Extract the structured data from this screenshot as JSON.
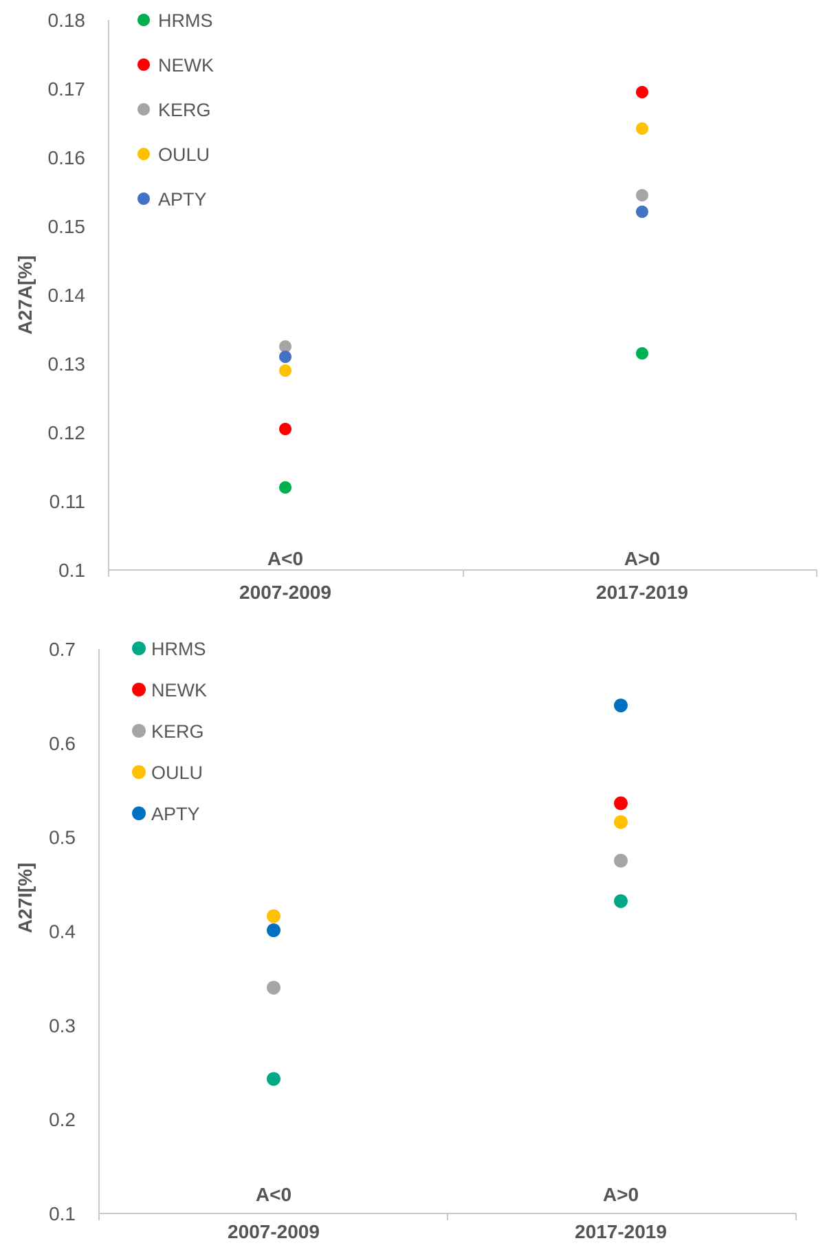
{
  "chart_data": [
    {
      "type": "scatter",
      "title": "",
      "xlabel": "",
      "ylabel": "A27A[%]",
      "ylim": [
        0.1,
        0.18
      ],
      "yticks": [
        "0.1",
        "0.11",
        "0.12",
        "0.13",
        "0.14",
        "0.15",
        "0.16",
        "0.17",
        "0.18"
      ],
      "categories": [
        "2007-2009",
        "2017-2019"
      ],
      "category_annotations": [
        "A<0",
        "A>0"
      ],
      "legend_position": "top-left",
      "grid": false,
      "series": [
        {
          "name": "HRMS",
          "color": "#00b050",
          "values": [
            0.112,
            0.1315
          ]
        },
        {
          "name": "NEWK",
          "color": "#ff0000",
          "values": [
            0.1205,
            0.1695
          ]
        },
        {
          "name": "KERG",
          "color": "#a5a5a5",
          "values": [
            0.1325,
            0.1545
          ]
        },
        {
          "name": "OULU",
          "color": "#ffc000",
          "values": [
            0.129,
            0.1642
          ]
        },
        {
          "name": "APTY",
          "color": "#4472c4",
          "values": [
            0.131,
            0.1521
          ]
        }
      ]
    },
    {
      "type": "scatter",
      "title": "",
      "xlabel": "",
      "ylabel": "A27I[%]",
      "ylim": [
        0.1,
        0.7
      ],
      "yticks": [
        "0.1",
        "0.2",
        "0.3",
        "0.4",
        "0.5",
        "0.6",
        "0.7"
      ],
      "categories": [
        "2007-2009",
        "2017-2019"
      ],
      "category_annotations": [
        "A<0",
        "A>0"
      ],
      "legend_position": "top-left",
      "grid": false,
      "series": [
        {
          "name": "HRMS",
          "color": "#00a887",
          "values": [
            0.243,
            0.432
          ]
        },
        {
          "name": "NEWK",
          "color": "#ff0000",
          "values": [
            null,
            0.536
          ]
        },
        {
          "name": "KERG",
          "color": "#a5a5a5",
          "values": [
            0.34,
            0.475
          ]
        },
        {
          "name": "OULU",
          "color": "#ffc000",
          "values": [
            0.416,
            0.516
          ]
        },
        {
          "name": "APTY",
          "color": "#0070c0",
          "values": [
            0.401,
            0.64
          ]
        }
      ]
    }
  ]
}
